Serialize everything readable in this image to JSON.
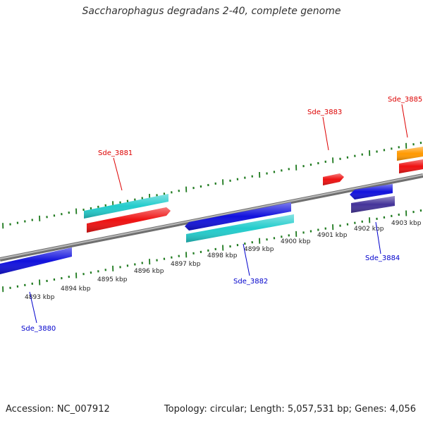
{
  "title": "Saccharophagus degradans 2-40, complete genome",
  "footer": {
    "accession": "Accession: NC_007912",
    "summary": "Topology: circular; Length: 5,057,531 bp; Genes: 4,056"
  },
  "colors": {
    "backbone": "#888888",
    "tick": "#1f7a1f",
    "label_red": "#dd0000",
    "label_blue": "#0000cc",
    "orange": "#ff9900",
    "red": "#ee1111",
    "cyan": "#22cccc",
    "blue": "#1111dd",
    "slate": "#443399"
  },
  "kbp_labels": [
    "4893 kbp",
    "4894 kbp",
    "4895 kbp",
    "4896 kbp",
    "4897 kbp",
    "4898 kbp",
    "4899 kbp",
    "4900 kbp",
    "4901 kbp",
    "4902 kbp",
    "4903 kbp"
  ],
  "gene_labels": [
    {
      "text": "Sde_3880",
      "strand": "reverse"
    },
    {
      "text": "Sde_3881",
      "strand": "forward"
    },
    {
      "text": "Sde_3882",
      "strand": "reverse"
    },
    {
      "text": "Sde_3883",
      "strand": "forward"
    },
    {
      "text": "Sde_3884",
      "strand": "reverse"
    },
    {
      "text": "Sde_3885",
      "strand": "forward"
    }
  ]
}
